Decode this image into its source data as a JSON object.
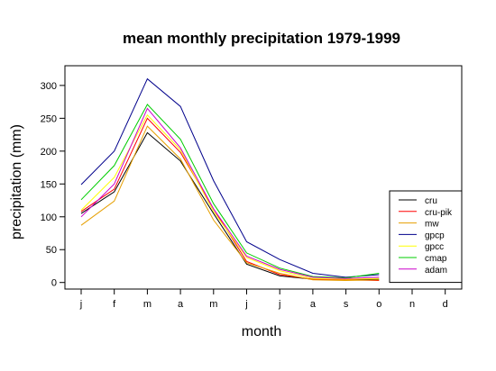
{
  "chart_data": {
    "type": "line",
    "title": "mean monthly precipitation 1979-1999",
    "xlabel": "month",
    "ylabel": "precipitation (mm)",
    "categories": [
      "j",
      "f",
      "m",
      "a",
      "m",
      "j",
      "j",
      "a",
      "s",
      "o",
      "n",
      "d"
    ],
    "yticks": [
      0,
      50,
      100,
      150,
      200,
      250,
      300
    ],
    "ylim": [
      -10,
      330
    ],
    "grid": false,
    "legend_position": "bottom-right",
    "series": [
      {
        "name": "cru",
        "color": "#000000",
        "values": [
          105,
          138,
          228,
          185,
          105,
          28,
          10,
          5,
          4,
          5,
          null,
          null
        ]
      },
      {
        "name": "cru-pik",
        "color": "#ff0000",
        "values": [
          108,
          142,
          250,
          198,
          112,
          32,
          12,
          5,
          4,
          3,
          null,
          null
        ]
      },
      {
        "name": "mw",
        "color": "#e69f00",
        "values": [
          87,
          124,
          238,
          188,
          95,
          30,
          14,
          4,
          3,
          4,
          null,
          null
        ]
      },
      {
        "name": "gpcp",
        "color": "#00008b",
        "values": [
          149,
          200,
          310,
          268,
          155,
          62,
          35,
          14,
          8,
          12,
          null,
          null
        ]
      },
      {
        "name": "gpcc",
        "color": "#ffff00",
        "values": [
          110,
          160,
          255,
          202,
          108,
          38,
          18,
          6,
          5,
          6,
          null,
          null
        ]
      },
      {
        "name": "cmap",
        "color": "#00cc00",
        "values": [
          126,
          178,
          271,
          218,
          120,
          45,
          22,
          9,
          7,
          14,
          null,
          null
        ]
      },
      {
        "name": "adam",
        "color": "#cc00cc",
        "values": [
          100,
          150,
          265,
          205,
          112,
          40,
          20,
          8,
          6,
          8,
          null,
          null
        ]
      }
    ]
  }
}
